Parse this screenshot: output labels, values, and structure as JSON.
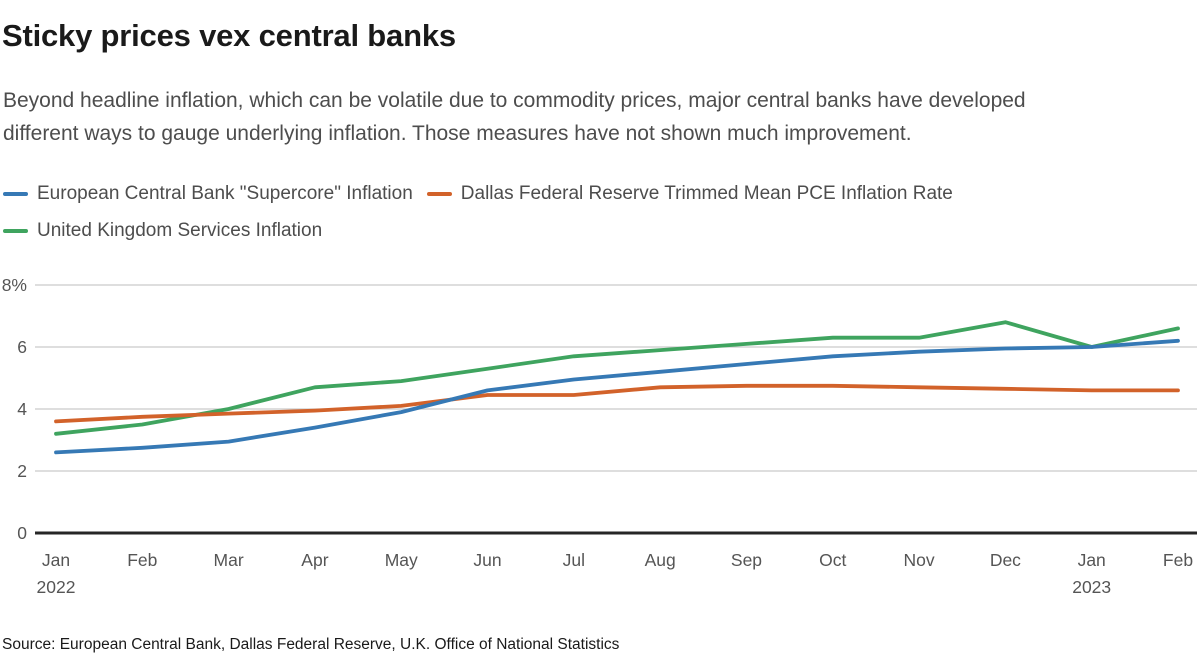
{
  "header": {
    "title": "Sticky prices vex central banks",
    "subtitle_line1": "Beyond headline inflation, which can be volatile due to commodity prices, major central banks have developed",
    "subtitle_line2": "different ways to gauge underlying inflation. Those measures have not shown much improvement."
  },
  "chart_data": {
    "type": "line",
    "title": "Sticky prices vex central banks",
    "subtitle": "Beyond headline inflation, which can be volatile due to commodity prices, major central banks have developed different ways to gauge underlying inflation. Those measures have not shown much improvement.",
    "xlabel": "",
    "ylabel": "",
    "categories": [
      "Jan 2022",
      "Feb 2022",
      "Mar 2022",
      "Apr 2022",
      "May 2022",
      "Jun 2022",
      "Jul 2022",
      "Aug 2022",
      "Sep 2022",
      "Oct 2022",
      "Nov 2022",
      "Dec 2022",
      "Jan 2023",
      "Feb 2023"
    ],
    "month_labels": [
      "Jan",
      "Feb",
      "Mar",
      "Apr",
      "May",
      "Jun",
      "Jul",
      "Aug",
      "Sep",
      "Oct",
      "Nov",
      "Dec",
      "Jan",
      "Feb"
    ],
    "year_labels": [
      {
        "index": 0,
        "text": "2022"
      },
      {
        "index": 12,
        "text": "2023"
      }
    ],
    "series": [
      {
        "name": "European Central Bank \"Supercore\" Inflation",
        "color": "#3679b5",
        "values": [
          2.6,
          2.75,
          2.95,
          3.4,
          3.9,
          4.6,
          4.95,
          5.2,
          5.45,
          5.7,
          5.85,
          5.95,
          6.0,
          6.2
        ]
      },
      {
        "name": "Dallas Federal Reserve Trimmed Mean PCE Inflation Rate",
        "color": "#d2622a",
        "values": [
          3.6,
          3.75,
          3.85,
          3.95,
          4.1,
          4.45,
          4.45,
          4.7,
          4.75,
          4.75,
          4.7,
          4.65,
          4.6,
          4.6
        ]
      },
      {
        "name": "United Kingdom Services Inflation",
        "color": "#3fa45f",
        "values": [
          3.2,
          3.5,
          4.0,
          4.7,
          4.9,
          5.3,
          5.7,
          5.9,
          6.1,
          6.3,
          6.3,
          6.8,
          6.0,
          6.6
        ]
      }
    ],
    "ylim": [
      0,
      8
    ],
    "yticks": [
      0,
      2,
      4,
      6,
      8
    ],
    "ytick_labels": [
      "0",
      "2",
      "4",
      "6",
      "8%"
    ],
    "grid": true,
    "legend_position": "top-left",
    "source": "Source: European Central Bank, Dallas Federal Reserve, U.K. Office of National Statistics"
  },
  "footer": {
    "source": "Source: European Central Bank, Dallas Federal Reserve, U.K. Office of National Statistics"
  },
  "colors": {
    "grid": "#cbcbcb",
    "axis": "#262626",
    "title_text": "#1a1a1a",
    "body_text": "#4d4d4d",
    "tick_text": "#555555"
  }
}
